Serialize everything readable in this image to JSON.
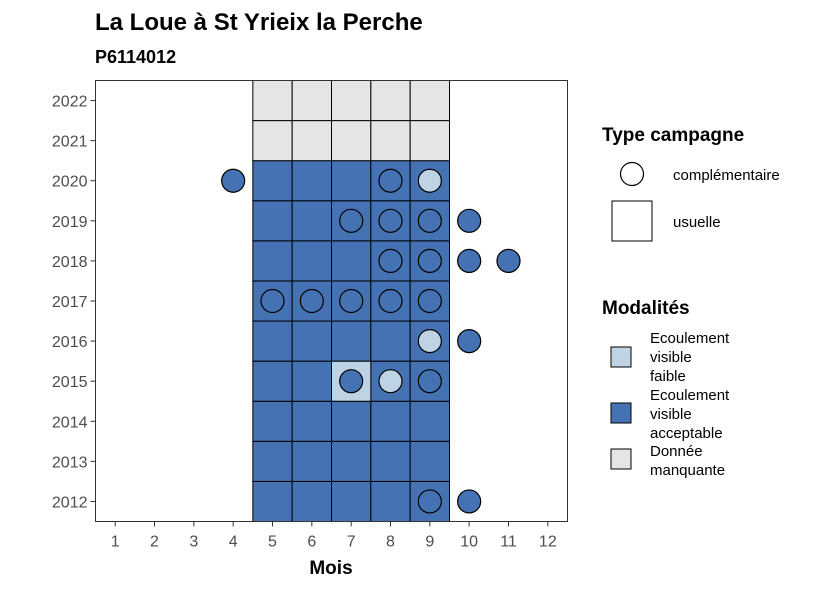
{
  "chart_data": {
    "type": "heatmap",
    "title": "La Loue à St Yrieix la Perche",
    "subtitle": "P6114012",
    "xlabel": "Mois",
    "ylabel": "",
    "x_ticks": [
      "1",
      "2",
      "3",
      "4",
      "5",
      "6",
      "7",
      "8",
      "9",
      "10",
      "11",
      "12"
    ],
    "y_ticks": [
      "2012",
      "2013",
      "2014",
      "2015",
      "2016",
      "2017",
      "2018",
      "2019",
      "2020",
      "2021",
      "2022"
    ],
    "xlim": [
      0.5,
      12.5
    ],
    "ylim": [
      2011.5,
      2022.5
    ],
    "grid": false,
    "colors": {
      "faible": "#bed3e3",
      "acceptable": "#4472b3",
      "manquante": "#e5e5e5",
      "tick": "#4d4d4d"
    },
    "usuelle": [
      {
        "year": 2012,
        "months": [
          5,
          6,
          7,
          8,
          9
        ],
        "mod": "acceptable"
      },
      {
        "year": 2013,
        "months": [
          5,
          6,
          7,
          8,
          9
        ],
        "mod": "acceptable"
      },
      {
        "year": 2014,
        "months": [
          5,
          6,
          7,
          8,
          9
        ],
        "mod": "acceptable"
      },
      {
        "year": 2015,
        "months": [
          5,
          6,
          8,
          9
        ],
        "mod": "acceptable"
      },
      {
        "year": 2015,
        "months": [
          7
        ],
        "mod": "faible"
      },
      {
        "year": 2016,
        "months": [
          5,
          6,
          7,
          8,
          9
        ],
        "mod": "acceptable"
      },
      {
        "year": 2017,
        "months": [
          5,
          6,
          7,
          8,
          9
        ],
        "mod": "acceptable"
      },
      {
        "year": 2018,
        "months": [
          5,
          6,
          7,
          8,
          9
        ],
        "mod": "acceptable"
      },
      {
        "year": 2019,
        "months": [
          5,
          6,
          7,
          8,
          9
        ],
        "mod": "acceptable"
      },
      {
        "year": 2020,
        "months": [
          5,
          6,
          7,
          8,
          9
        ],
        "mod": "acceptable"
      },
      {
        "year": 2021,
        "months": [
          5,
          6,
          7,
          8,
          9
        ],
        "mod": "manquante"
      },
      {
        "year": 2022,
        "months": [
          5,
          6,
          7,
          8,
          9
        ],
        "mod": "manquante"
      }
    ],
    "complementaire": [
      {
        "year": 2020,
        "months": [
          4,
          8
        ],
        "mod": "acceptable"
      },
      {
        "year": 2020,
        "months": [
          9
        ],
        "mod": "faible"
      },
      {
        "year": 2019,
        "months": [
          7,
          8,
          9,
          10
        ],
        "mod": "acceptable"
      },
      {
        "year": 2018,
        "months": [
          8,
          9,
          10,
          11
        ],
        "mod": "acceptable"
      },
      {
        "year": 2017,
        "months": [
          5,
          6,
          7,
          8,
          9
        ],
        "mod": "acceptable"
      },
      {
        "year": 2016,
        "months": [
          9
        ],
        "mod": "faible"
      },
      {
        "year": 2016,
        "months": [
          10
        ],
        "mod": "acceptable"
      },
      {
        "year": 2015,
        "months": [
          7,
          9
        ],
        "mod": "acceptable"
      },
      {
        "year": 2015,
        "months": [
          8
        ],
        "mod": "faible"
      },
      {
        "year": 2012,
        "months": [
          9,
          10
        ],
        "mod": "acceptable"
      }
    ],
    "legend": {
      "placement": "right",
      "type_title": "Type campagne",
      "type_items": [
        {
          "shape": "circle",
          "label": "complémentaire"
        },
        {
          "shape": "square",
          "label": "usuelle"
        }
      ],
      "mod_title": "Modalités",
      "mod_items": [
        {
          "key": "faible",
          "lines": [
            "Ecoulement",
            "visible",
            "faible"
          ]
        },
        {
          "key": "acceptable",
          "lines": [
            "Ecoulement",
            "visible",
            "acceptable"
          ]
        },
        {
          "key": "manquante",
          "lines": [
            "Donnée",
            "manquante"
          ]
        }
      ]
    }
  }
}
